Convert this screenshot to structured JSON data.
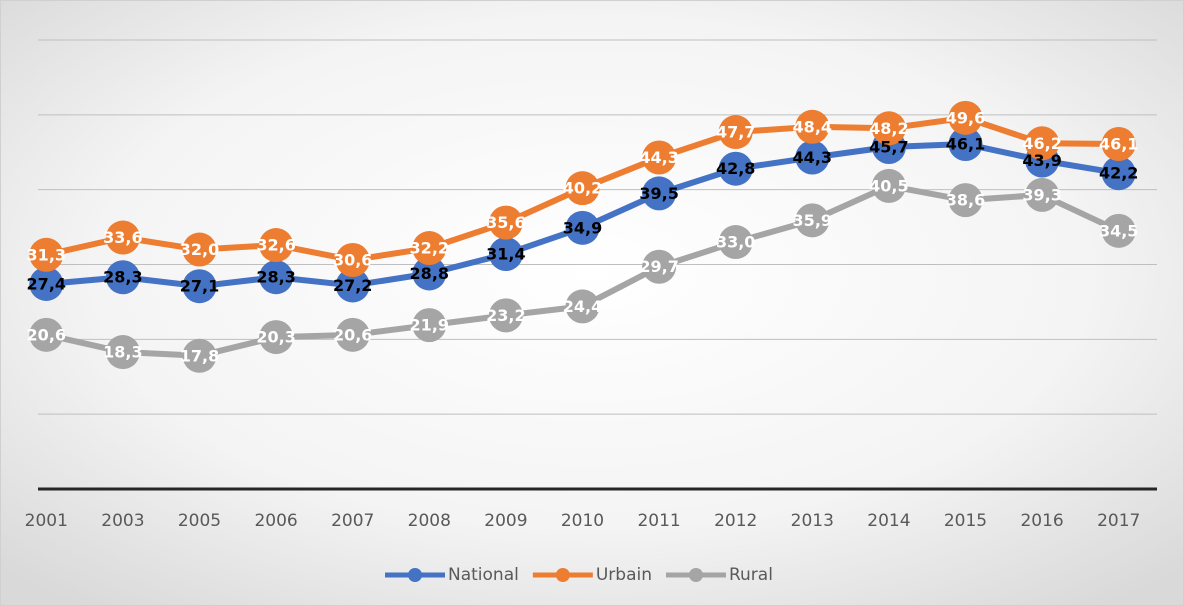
{
  "chart_data": {
    "type": "line",
    "categories": [
      "2001",
      "2003",
      "2005",
      "2006",
      "2007",
      "2008",
      "2009",
      "2010",
      "2011",
      "2012",
      "2013",
      "2014",
      "2015",
      "2016",
      "2017"
    ],
    "series": [
      {
        "name": "National",
        "color": "#4472c4",
        "label_color": "#000000",
        "values": [
          27.4,
          28.3,
          27.1,
          28.3,
          27.2,
          28.8,
          31.4,
          34.9,
          39.5,
          42.8,
          44.3,
          45.7,
          46.1,
          43.9,
          42.2
        ],
        "value_labels": [
          "27,4",
          "28,3",
          "27,1",
          "28,3",
          "27,2",
          "28,8",
          "31,4",
          "34,9",
          "39,5",
          "42,8",
          "44,3",
          "45,7",
          "46,1",
          "43,9",
          "42,2"
        ]
      },
      {
        "name": "Urbain",
        "color": "#ed7d31",
        "label_color": "#ffffff",
        "values": [
          31.3,
          33.6,
          32.0,
          32.6,
          30.6,
          32.2,
          35.6,
          40.2,
          44.3,
          47.7,
          48.4,
          48.2,
          49.6,
          46.2,
          46.1
        ],
        "value_labels": [
          "31,3",
          "33,6",
          "32,0",
          "32,6",
          "30,6",
          "32,2",
          "35,6",
          "40,2",
          "44,3",
          "47,7",
          "48,4",
          "48,2",
          "49,6",
          "46,2",
          "46,1"
        ]
      },
      {
        "name": "Rural",
        "color": "#a5a5a5",
        "label_color": "#ffffff",
        "values": [
          20.6,
          18.3,
          17.8,
          20.3,
          20.6,
          21.9,
          23.2,
          24.4,
          29.7,
          33.0,
          35.9,
          40.5,
          38.6,
          39.3,
          34.5
        ],
        "value_labels": [
          "20,6",
          "18,3",
          "17,8",
          "20,3",
          "20,6",
          "21,9",
          "23,2",
          "24,4",
          "29,7",
          "33,0",
          "35,9",
          "40,5",
          "38,6",
          "39,3",
          "34,5"
        ]
      }
    ],
    "ylim": [
      0,
      60
    ],
    "yticks": [
      0,
      10,
      20,
      30,
      40,
      50,
      60
    ],
    "grid": true,
    "legend": "bottom"
  }
}
